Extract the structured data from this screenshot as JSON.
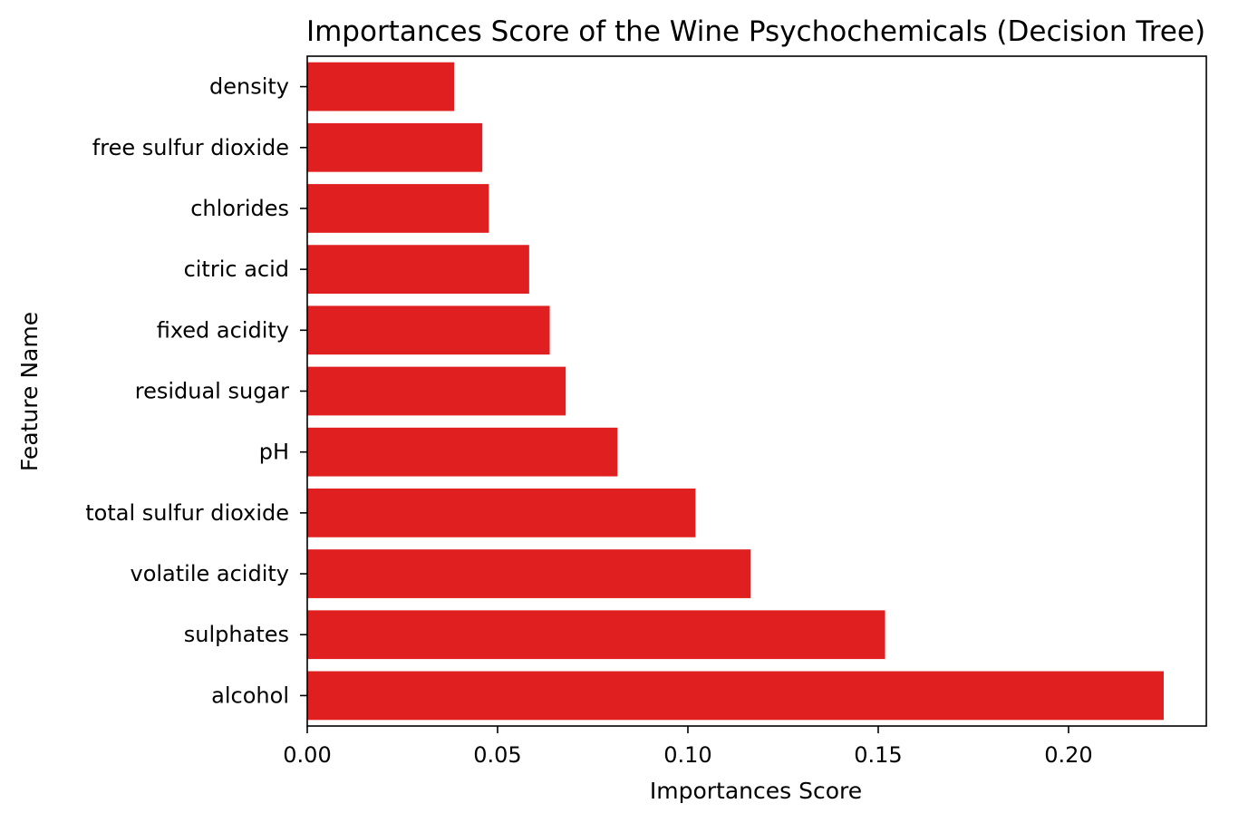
{
  "chart_data": {
    "type": "bar",
    "orientation": "horizontal",
    "title": "Importances Score of the Wine Psychochemicals (Decision Tree)",
    "xlabel": "Importances Score",
    "ylabel": "Feature Name",
    "categories": [
      "density",
      "free sulfur dioxide",
      "chlorides",
      "citric acid",
      "fixed acidity",
      "residual sugar",
      "pH",
      "total sulfur dioxide",
      "volatile acidity",
      "sulphates",
      "alcohol"
    ],
    "values": [
      0.0386,
      0.046,
      0.0477,
      0.0583,
      0.0637,
      0.0679,
      0.0815,
      0.102,
      0.1165,
      0.1518,
      0.225
    ],
    "xlim": [
      0,
      0.2362
    ],
    "xticks": [
      "0.00",
      "0.05",
      "0.10",
      "0.15",
      "0.20"
    ],
    "bar_color": "#e02020",
    "grid": false,
    "legend": "none"
  }
}
